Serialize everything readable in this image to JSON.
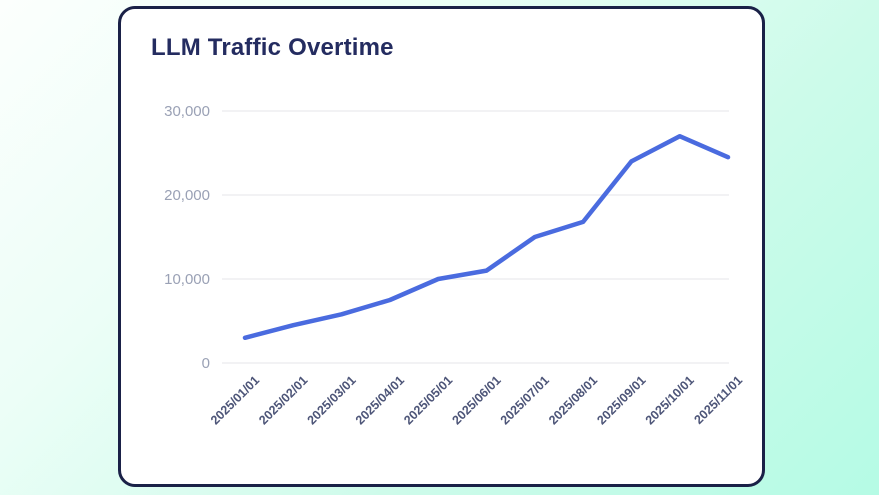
{
  "card": {
    "title": "LLM Traffic Overtime"
  },
  "colors": {
    "background_gradient_start": "#fcfffd",
    "background_gradient_end": "#b5fbe5",
    "card_background": "#ffffff",
    "card_border": "#1a2147",
    "title_text": "#242c60",
    "line": "#4a6bdf",
    "gridline": "#e9e9ee",
    "y_tick_label": "#9aa1b5",
    "x_tick_label": "#4d5578"
  },
  "chart_data": {
    "type": "line",
    "title": "LLM Traffic Overtime",
    "x": [
      "2025/01/01",
      "2025/02/01",
      "2025/03/01",
      "2025/04/01",
      "2025/05/01",
      "2025/06/01",
      "2025/07/01",
      "2025/08/01",
      "2025/09/01",
      "2025/10/01",
      "2025/11/01"
    ],
    "values": [
      3000,
      4500,
      5800,
      7500,
      10000,
      11000,
      15000,
      16800,
      24000,
      27000,
      24500
    ],
    "series_name": "LLM Traffic",
    "xlabel": "",
    "ylabel": "",
    "ylim": [
      0,
      30000
    ],
    "yticks": [
      0,
      10000,
      20000,
      30000
    ],
    "ytick_labels": [
      "0",
      "10,000",
      "20,000",
      "30,000"
    ],
    "x_tick_rotation_deg": 45,
    "grid": "horizontal-only",
    "legend": "none"
  }
}
